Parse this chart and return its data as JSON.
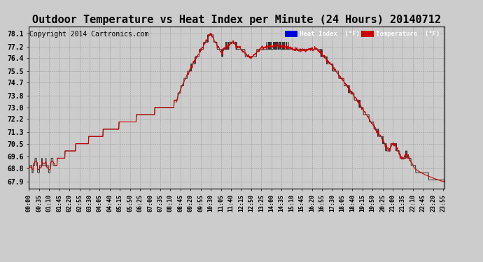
{
  "title": "Outdoor Temperature vs Heat Index per Minute (24 Hours) 20140712",
  "copyright": "Copyright 2014 Cartronics.com",
  "y_ticks": [
    67.9,
    68.8,
    69.6,
    70.5,
    71.3,
    72.2,
    73.0,
    73.8,
    74.7,
    75.5,
    76.4,
    77.2,
    78.1
  ],
  "ylim_min": 67.4,
  "ylim_max": 78.6,
  "x_tick_labels": [
    "00:00",
    "00:35",
    "01:10",
    "01:45",
    "02:20",
    "02:55",
    "03:30",
    "04:05",
    "04:40",
    "05:15",
    "05:50",
    "06:25",
    "07:00",
    "07:35",
    "08:10",
    "08:45",
    "09:20",
    "09:55",
    "10:30",
    "11:05",
    "11:40",
    "12:15",
    "12:50",
    "13:25",
    "14:00",
    "14:35",
    "15:10",
    "15:45",
    "16:20",
    "16:55",
    "17:30",
    "18:05",
    "18:40",
    "19:15",
    "19:50",
    "20:25",
    "21:00",
    "21:35",
    "22:10",
    "22:45",
    "23:20",
    "23:55"
  ],
  "legend_heat_color": "#0000dd",
  "legend_temp_color": "#cc0000",
  "line_color_heat": "#333333",
  "line_color_temp": "#cc0000",
  "bg_color": "#cccccc",
  "grid_color": "#999999",
  "title_fontsize": 11,
  "copyright_fontsize": 7
}
